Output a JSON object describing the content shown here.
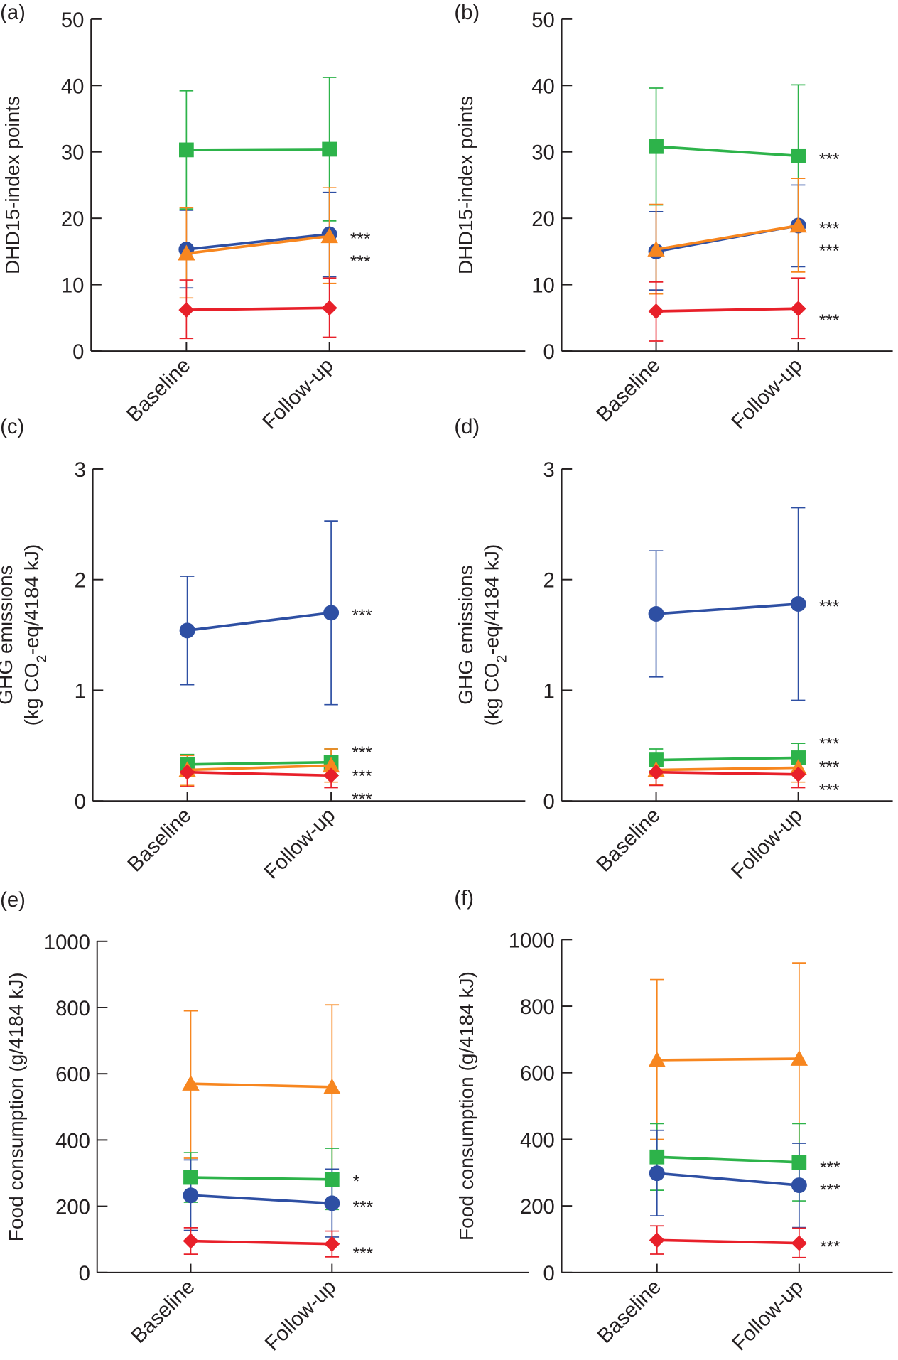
{
  "colors": {
    "blue": "#2e4fa3",
    "green": "#2db34a",
    "orange": "#f7861f",
    "red": "#e8202a",
    "axis": "#231f20"
  },
  "chart_data": [
    {
      "panel_label": "(a)",
      "type": "line",
      "ylabel": [
        "DHD15-index points"
      ],
      "categories": [
        "Baseline",
        "Follow-up"
      ],
      "ylim": [
        0,
        50
      ],
      "yticks": [
        "0",
        "10",
        "20",
        "30",
        "40",
        "50"
      ],
      "grid": false,
      "series": [
        {
          "color": "green",
          "marker": "square",
          "values": [
            30.3,
            30.4
          ],
          "error_low": [
            21.4,
            19.6
          ],
          "error_high": [
            39.2,
            41.2
          ]
        },
        {
          "color": "blue",
          "marker": "circle",
          "values": [
            15.3,
            17.6
          ],
          "error_low": [
            9.5,
            11.2
          ],
          "error_high": [
            21.2,
            23.9
          ]
        },
        {
          "color": "orange",
          "marker": "triangle",
          "values": [
            14.7,
            17.3
          ],
          "error_low": [
            8.0,
            10.2
          ],
          "error_high": [
            21.6,
            24.6
          ]
        },
        {
          "color": "red",
          "marker": "diamond",
          "values": [
            6.2,
            6.5
          ],
          "error_low": [
            1.9,
            2.1
          ],
          "error_high": [
            10.7,
            11.0
          ]
        }
      ],
      "annotations": [
        {
          "text": "***",
          "y": 17.6
        },
        {
          "text": "***",
          "y": 14.2
        }
      ]
    },
    {
      "panel_label": "(b)",
      "type": "line",
      "ylabel": [
        "DHD15-index points"
      ],
      "categories": [
        "Baseline",
        "Follow-up"
      ],
      "ylim": [
        0,
        50
      ],
      "yticks": [
        "0",
        "10",
        "20",
        "30",
        "40",
        "50"
      ],
      "grid": false,
      "series": [
        {
          "color": "green",
          "marker": "square",
          "values": [
            30.8,
            29.4
          ],
          "error_low": [
            22.0,
            18.8
          ],
          "error_high": [
            39.6,
            40.1
          ]
        },
        {
          "color": "blue",
          "marker": "circle",
          "values": [
            15.0,
            18.9
          ],
          "error_low": [
            9.2,
            12.7
          ],
          "error_high": [
            21.0,
            25.0
          ]
        },
        {
          "color": "orange",
          "marker": "triangle",
          "values": [
            15.3,
            18.9
          ],
          "error_low": [
            8.6,
            11.9
          ],
          "error_high": [
            22.1,
            26.0
          ]
        },
        {
          "color": "red",
          "marker": "diamond",
          "values": [
            6.0,
            6.4
          ],
          "error_low": [
            1.5,
            1.9
          ],
          "error_high": [
            10.4,
            11.0
          ]
        }
      ],
      "annotations": [
        {
          "text": "***",
          "y": 29.6
        },
        {
          "text": "***",
          "y": 19.2
        },
        {
          "text": "***",
          "y": 15.8
        },
        {
          "text": "***",
          "y": 5.3
        }
      ]
    },
    {
      "panel_label": "(c)",
      "type": "line",
      "ylabel": [
        "GHG emissions",
        "(kg CO",
        "2",
        "-eq/4184 kJ)"
      ],
      "categories": [
        "Baseline",
        "Follow-up"
      ],
      "ylim": [
        0,
        3
      ],
      "yticks": [
        "0",
        "1",
        "2",
        "3"
      ],
      "grid": false,
      "series": [
        {
          "color": "blue",
          "marker": "circle",
          "values": [
            1.54,
            1.7
          ],
          "error_low": [
            1.05,
            0.87
          ],
          "error_high": [
            2.03,
            2.53
          ]
        },
        {
          "color": "green",
          "marker": "square",
          "values": [
            0.33,
            0.35
          ],
          "error_low": [
            0.24,
            0.24
          ],
          "error_high": [
            0.42,
            0.47
          ]
        },
        {
          "color": "orange",
          "marker": "triangle",
          "values": [
            0.28,
            0.32
          ],
          "error_low": [
            0.14,
            0.17
          ],
          "error_high": [
            0.41,
            0.47
          ]
        },
        {
          "color": "red",
          "marker": "diamond",
          "values": [
            0.26,
            0.23
          ],
          "error_low": [
            0.13,
            0.12
          ],
          "error_high": [
            0.38,
            0.34
          ]
        }
      ],
      "annotations": [
        {
          "text": "***",
          "y": 1.72
        },
        {
          "text": "***",
          "y": 0.48
        },
        {
          "text": "***",
          "y": 0.27
        },
        {
          "text": "***",
          "y": 0.06
        }
      ]
    },
    {
      "panel_label": "(d)",
      "type": "line",
      "ylabel": [
        "GHG emissions",
        "(kg CO",
        "2",
        "-eq/4184 kJ)"
      ],
      "categories": [
        "Baseline",
        "Follow-up"
      ],
      "ylim": [
        0,
        3
      ],
      "yticks": [
        "0",
        "1",
        "2",
        "3"
      ],
      "grid": false,
      "series": [
        {
          "color": "blue",
          "marker": "circle",
          "values": [
            1.69,
            1.78
          ],
          "error_low": [
            1.12,
            0.91
          ],
          "error_high": [
            2.26,
            2.65
          ]
        },
        {
          "color": "green",
          "marker": "square",
          "values": [
            0.37,
            0.39
          ],
          "error_low": [
            0.27,
            0.26
          ],
          "error_high": [
            0.47,
            0.52
          ]
        },
        {
          "color": "orange",
          "marker": "triangle",
          "values": [
            0.28,
            0.3
          ],
          "error_low": [
            0.15,
            0.17
          ],
          "error_high": [
            0.42,
            0.44
          ]
        },
        {
          "color": "red",
          "marker": "diamond",
          "values": [
            0.26,
            0.24
          ],
          "error_low": [
            0.14,
            0.12
          ],
          "error_high": [
            0.38,
            0.36
          ]
        }
      ],
      "annotations": [
        {
          "text": "***",
          "y": 1.8
        },
        {
          "text": "***",
          "y": 0.56
        },
        {
          "text": "***",
          "y": 0.35
        },
        {
          "text": "***",
          "y": 0.14
        }
      ]
    },
    {
      "panel_label": "(e)",
      "type": "line",
      "ylabel": [
        "Food consumption (g/4184 kJ)"
      ],
      "categories": [
        "Baseline",
        "Follow-up"
      ],
      "ylim": [
        0,
        1000
      ],
      "yticks": [
        "0",
        "200",
        "400",
        "600",
        "800",
        "1000"
      ],
      "grid": false,
      "series": [
        {
          "color": "orange",
          "marker": "triangle",
          "values": [
            570,
            560
          ],
          "error_low": [
            345,
            312
          ],
          "error_high": [
            790,
            808
          ]
        },
        {
          "color": "green",
          "marker": "square",
          "values": [
            287,
            281
          ],
          "error_low": [
            212,
            190
          ],
          "error_high": [
            362,
            375
          ]
        },
        {
          "color": "blue",
          "marker": "circle",
          "values": [
            233,
            209
          ],
          "error_low": [
            127,
            107
          ],
          "error_high": [
            340,
            312
          ]
        },
        {
          "color": "red",
          "marker": "diamond",
          "values": [
            95,
            86
          ],
          "error_low": [
            55,
            47
          ],
          "error_high": [
            135,
            125
          ]
        }
      ],
      "annotations": [
        {
          "text": "*",
          "y": 290
        },
        {
          "text": "***",
          "y": 212
        },
        {
          "text": "***",
          "y": 72
        }
      ]
    },
    {
      "panel_label": "(f)",
      "type": "line",
      "ylabel": [
        "Food consumption (g/4184 kJ)"
      ],
      "categories": [
        "Baseline",
        "Follow-up"
      ],
      "ylim": [
        0,
        1000
      ],
      "yticks": [
        "0",
        "200",
        "400",
        "600",
        "800",
        "1000"
      ],
      "grid": false,
      "series": [
        {
          "color": "orange",
          "marker": "triangle",
          "values": [
            638,
            642
          ],
          "error_low": [
            400,
            350
          ],
          "error_high": [
            880,
            930
          ]
        },
        {
          "color": "green",
          "marker": "square",
          "values": [
            347,
            331
          ],
          "error_low": [
            247,
            215
          ],
          "error_high": [
            447,
            447
          ]
        },
        {
          "color": "blue",
          "marker": "circle",
          "values": [
            298,
            262
          ],
          "error_low": [
            170,
            135
          ],
          "error_high": [
            427,
            388
          ]
        },
        {
          "color": "red",
          "marker": "diamond",
          "values": [
            97,
            88
          ],
          "error_low": [
            55,
            45
          ],
          "error_high": [
            140,
            133
          ]
        }
      ],
      "annotations": [
        {
          "text": "***",
          "y": 330
        },
        {
          "text": "***",
          "y": 262
        },
        {
          "text": "***",
          "y": 92
        }
      ]
    }
  ]
}
